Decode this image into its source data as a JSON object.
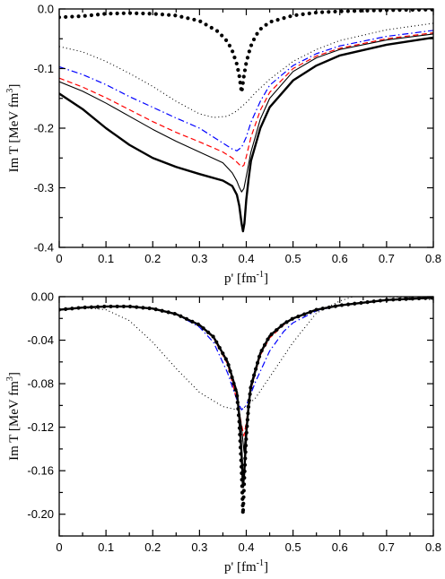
{
  "chart_data": [
    {
      "type": "line",
      "xlabel": "p' [fm",
      "xlabel_sup": "-1",
      "xlabel_end": "]",
      "ylabel": "Im T [MeV fm",
      "ylabel_sup": "3",
      "ylabel_end": "]",
      "xlim": [
        0,
        0.8
      ],
      "ylim": [
        -0.4,
        0.0
      ],
      "xticks": [
        0,
        0.1,
        0.2,
        0.3,
        0.4,
        0.5,
        0.6,
        0.7,
        0.8
      ],
      "xtick_labels": [
        "0",
        "0.1",
        "0.2",
        "0.3",
        "0.4",
        "0.5",
        "0.6",
        "0.7",
        "0.8"
      ],
      "yticks": [
        -0.4,
        -0.3,
        -0.2,
        -0.1,
        0.0
      ],
      "ytick_labels": [
        "-0.4",
        "-0.3",
        "-0.2",
        "-0.1",
        "0.0"
      ],
      "grid": false,
      "series": [
        {
          "style": "bold-dotted",
          "color": "#000000",
          "x": [
            0.0,
            0.05,
            0.1,
            0.15,
            0.2,
            0.25,
            0.3,
            0.34,
            0.36,
            0.37,
            0.38,
            0.385,
            0.39,
            0.395,
            0.4,
            0.405,
            0.41,
            0.42,
            0.43,
            0.45,
            0.5,
            0.55,
            0.6,
            0.7,
            0.8
          ],
          "y": [
            -0.014,
            -0.012,
            -0.008,
            -0.007,
            -0.008,
            -0.011,
            -0.02,
            -0.038,
            -0.055,
            -0.07,
            -0.093,
            -0.112,
            -0.14,
            -0.112,
            -0.09,
            -0.075,
            -0.062,
            -0.045,
            -0.034,
            -0.022,
            -0.011,
            -0.006,
            -0.004,
            -0.002,
            -0.001
          ]
        },
        {
          "style": "dotted",
          "color": "#000000",
          "x": [
            0.0,
            0.05,
            0.1,
            0.15,
            0.2,
            0.25,
            0.3,
            0.33,
            0.36,
            0.38,
            0.4,
            0.42,
            0.45,
            0.5,
            0.55,
            0.6,
            0.7,
            0.8
          ],
          "y": [
            -0.063,
            -0.072,
            -0.088,
            -0.108,
            -0.13,
            -0.155,
            -0.176,
            -0.182,
            -0.18,
            -0.171,
            -0.157,
            -0.14,
            -0.118,
            -0.088,
            -0.068,
            -0.053,
            -0.035,
            -0.024
          ]
        },
        {
          "style": "dash-dot",
          "color": "#0000ff",
          "x": [
            0.0,
            0.05,
            0.1,
            0.15,
            0.2,
            0.25,
            0.3,
            0.35,
            0.37,
            0.38,
            0.39,
            0.4,
            0.41,
            0.43,
            0.45,
            0.5,
            0.55,
            0.6,
            0.7,
            0.8
          ],
          "y": [
            -0.097,
            -0.11,
            -0.127,
            -0.147,
            -0.165,
            -0.183,
            -0.2,
            -0.225,
            -0.235,
            -0.238,
            -0.232,
            -0.215,
            -0.19,
            -0.155,
            -0.128,
            -0.095,
            -0.075,
            -0.062,
            -0.046,
            -0.036
          ]
        },
        {
          "style": "dashed",
          "color": "#ff0000",
          "x": [
            0.0,
            0.05,
            0.1,
            0.15,
            0.2,
            0.25,
            0.3,
            0.35,
            0.37,
            0.38,
            0.39,
            0.395,
            0.4,
            0.41,
            0.43,
            0.45,
            0.5,
            0.55,
            0.6,
            0.7,
            0.8
          ],
          "y": [
            -0.116,
            -0.131,
            -0.149,
            -0.169,
            -0.189,
            -0.207,
            -0.223,
            -0.24,
            -0.25,
            -0.257,
            -0.265,
            -0.262,
            -0.248,
            -0.215,
            -0.17,
            -0.14,
            -0.1,
            -0.079,
            -0.066,
            -0.05,
            -0.04
          ]
        },
        {
          "style": "thin-solid",
          "color": "#000000",
          "x": [
            0.0,
            0.05,
            0.1,
            0.15,
            0.2,
            0.25,
            0.3,
            0.35,
            0.37,
            0.38,
            0.385,
            0.39,
            0.395,
            0.4,
            0.41,
            0.43,
            0.45,
            0.5,
            0.55,
            0.6,
            0.7,
            0.8
          ],
          "y": [
            -0.122,
            -0.138,
            -0.158,
            -0.18,
            -0.202,
            -0.222,
            -0.24,
            -0.258,
            -0.275,
            -0.289,
            -0.299,
            -0.307,
            -0.301,
            -0.281,
            -0.24,
            -0.185,
            -0.15,
            -0.105,
            -0.082,
            -0.068,
            -0.052,
            -0.042
          ]
        },
        {
          "style": "bold-solid",
          "color": "#000000",
          "x": [
            0.0,
            0.05,
            0.1,
            0.15,
            0.2,
            0.25,
            0.3,
            0.35,
            0.37,
            0.38,
            0.385,
            0.39,
            0.393,
            0.396,
            0.4,
            0.405,
            0.41,
            0.43,
            0.45,
            0.5,
            0.55,
            0.6,
            0.7,
            0.8
          ],
          "y": [
            -0.142,
            -0.168,
            -0.2,
            -0.228,
            -0.25,
            -0.265,
            -0.277,
            -0.288,
            -0.297,
            -0.312,
            -0.33,
            -0.36,
            -0.373,
            -0.36,
            -0.32,
            -0.285,
            -0.255,
            -0.2,
            -0.165,
            -0.12,
            -0.095,
            -0.078,
            -0.06,
            -0.048
          ]
        }
      ]
    },
    {
      "type": "line",
      "xlabel": "p' [fm",
      "xlabel_sup": "-1",
      "xlabel_end": "]",
      "ylabel": "Im T [MeV fm",
      "ylabel_sup": "3",
      "ylabel_end": "]",
      "xlim": [
        0,
        0.8
      ],
      "ylim": [
        -0.22,
        0.0
      ],
      "xticks": [
        0,
        0.1,
        0.2,
        0.3,
        0.4,
        0.5,
        0.6,
        0.7,
        0.8
      ],
      "xtick_labels": [
        "0",
        "0.1",
        "0.2",
        "0.3",
        "0.4",
        "0.5",
        "0.6",
        "0.7",
        "0.8"
      ],
      "yticks": [
        -0.2,
        -0.16,
        -0.12,
        -0.08,
        -0.04,
        0.0
      ],
      "ytick_labels": [
        "-0.20",
        "-0.16",
        "-0.12",
        "-0.08",
        "-0.04",
        "0.00"
      ],
      "grid": false,
      "series": [
        {
          "style": "dotted",
          "color": "#000000",
          "x": [
            0.0,
            0.05,
            0.1,
            0.15,
            0.2,
            0.25,
            0.3,
            0.35,
            0.38,
            0.4,
            0.42,
            0.45,
            0.5,
            0.55,
            0.6,
            0.65,
            0.7,
            0.75,
            0.8
          ],
          "y": [
            -0.012,
            -0.01,
            -0.012,
            -0.022,
            -0.042,
            -0.066,
            -0.088,
            -0.101,
            -0.104,
            -0.101,
            -0.093,
            -0.074,
            -0.042,
            -0.015,
            -0.004,
            0.003,
            0.0,
            -0.001,
            -0.003
          ]
        },
        {
          "style": "dash-dot",
          "color": "#0000ff",
          "x": [
            0.0,
            0.05,
            0.1,
            0.15,
            0.2,
            0.25,
            0.3,
            0.33,
            0.36,
            0.38,
            0.39,
            0.4,
            0.42,
            0.45,
            0.48,
            0.5,
            0.55,
            0.6,
            0.7,
            0.8
          ],
          "y": [
            -0.012,
            -0.01,
            -0.009,
            -0.009,
            -0.011,
            -0.016,
            -0.028,
            -0.042,
            -0.07,
            -0.095,
            -0.104,
            -0.1,
            -0.078,
            -0.05,
            -0.032,
            -0.024,
            -0.013,
            -0.008,
            -0.003,
            -0.001
          ]
        },
        {
          "style": "dashed",
          "color": "#ff0000",
          "x": [
            0.0,
            0.05,
            0.1,
            0.15,
            0.2,
            0.25,
            0.3,
            0.33,
            0.36,
            0.38,
            0.39,
            0.395,
            0.4,
            0.41,
            0.43,
            0.45,
            0.48,
            0.5,
            0.55,
            0.6,
            0.7,
            0.8
          ],
          "y": [
            -0.012,
            -0.01,
            -0.009,
            -0.009,
            -0.011,
            -0.016,
            -0.026,
            -0.038,
            -0.062,
            -0.095,
            -0.118,
            -0.128,
            -0.116,
            -0.085,
            -0.054,
            -0.038,
            -0.026,
            -0.02,
            -0.012,
            -0.008,
            -0.003,
            -0.001
          ]
        },
        {
          "style": "thin-solid",
          "color": "#000000",
          "x": [
            0.0,
            0.05,
            0.1,
            0.15,
            0.2,
            0.25,
            0.3,
            0.33,
            0.36,
            0.38,
            0.39,
            0.395,
            0.4,
            0.41,
            0.43,
            0.45,
            0.48,
            0.5,
            0.55,
            0.6,
            0.7,
            0.8
          ],
          "y": [
            -0.012,
            -0.01,
            -0.009,
            -0.009,
            -0.011,
            -0.016,
            -0.026,
            -0.037,
            -0.06,
            -0.09,
            -0.12,
            -0.142,
            -0.12,
            -0.085,
            -0.053,
            -0.037,
            -0.025,
            -0.02,
            -0.012,
            -0.008,
            -0.003,
            -0.001
          ]
        },
        {
          "style": "bold-solid",
          "color": "#000000",
          "x": [
            0.0,
            0.05,
            0.1,
            0.15,
            0.2,
            0.25,
            0.3,
            0.33,
            0.36,
            0.38,
            0.385,
            0.39,
            0.393,
            0.396,
            0.4,
            0.405,
            0.41,
            0.43,
            0.45,
            0.48,
            0.5,
            0.55,
            0.6,
            0.7,
            0.8
          ],
          "y": [
            -0.012,
            -0.01,
            -0.009,
            -0.009,
            -0.011,
            -0.016,
            -0.026,
            -0.037,
            -0.06,
            -0.088,
            -0.11,
            -0.145,
            -0.175,
            -0.16,
            -0.125,
            -0.1,
            -0.082,
            -0.052,
            -0.036,
            -0.025,
            -0.02,
            -0.012,
            -0.008,
            -0.003,
            -0.001
          ]
        },
        {
          "style": "bold-dotted",
          "color": "#000000",
          "x": [
            0.0,
            0.05,
            0.1,
            0.15,
            0.2,
            0.25,
            0.3,
            0.33,
            0.36,
            0.38,
            0.385,
            0.39,
            0.393,
            0.396,
            0.4,
            0.405,
            0.41,
            0.43,
            0.45,
            0.48,
            0.5,
            0.55,
            0.6,
            0.7,
            0.8
          ],
          "y": [
            -0.012,
            -0.01,
            -0.009,
            -0.009,
            -0.011,
            -0.016,
            -0.026,
            -0.037,
            -0.06,
            -0.09,
            -0.115,
            -0.16,
            -0.2,
            -0.165,
            -0.128,
            -0.1,
            -0.082,
            -0.052,
            -0.036,
            -0.025,
            -0.02,
            -0.012,
            -0.008,
            -0.003,
            -0.001
          ]
        }
      ]
    }
  ]
}
